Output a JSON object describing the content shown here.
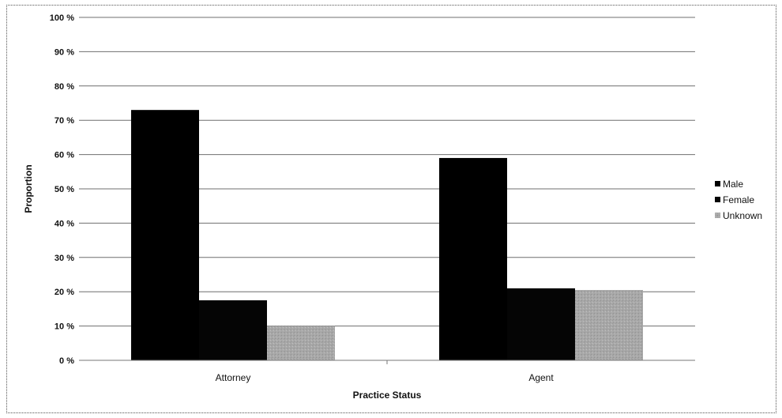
{
  "chart_data": {
    "type": "bar",
    "title": "",
    "xlabel": "Practice Status",
    "ylabel": "Proportion",
    "categories": [
      "Attorney",
      "Agent"
    ],
    "ylim": [
      0,
      100
    ],
    "yticks": [
      0,
      10,
      20,
      30,
      40,
      50,
      60,
      70,
      80,
      90,
      100
    ],
    "tick_suffix": "%",
    "grid": true,
    "legend_position": "right",
    "series": [
      {
        "name": "Male",
        "values": [
          73,
          59
        ],
        "color": "#000000"
      },
      {
        "name": "Female",
        "values": [
          17.5,
          21
        ],
        "color": "#050505"
      },
      {
        "name": "Unknown",
        "values": [
          10,
          20.5
        ],
        "color": "#a9a9a9"
      }
    ]
  }
}
